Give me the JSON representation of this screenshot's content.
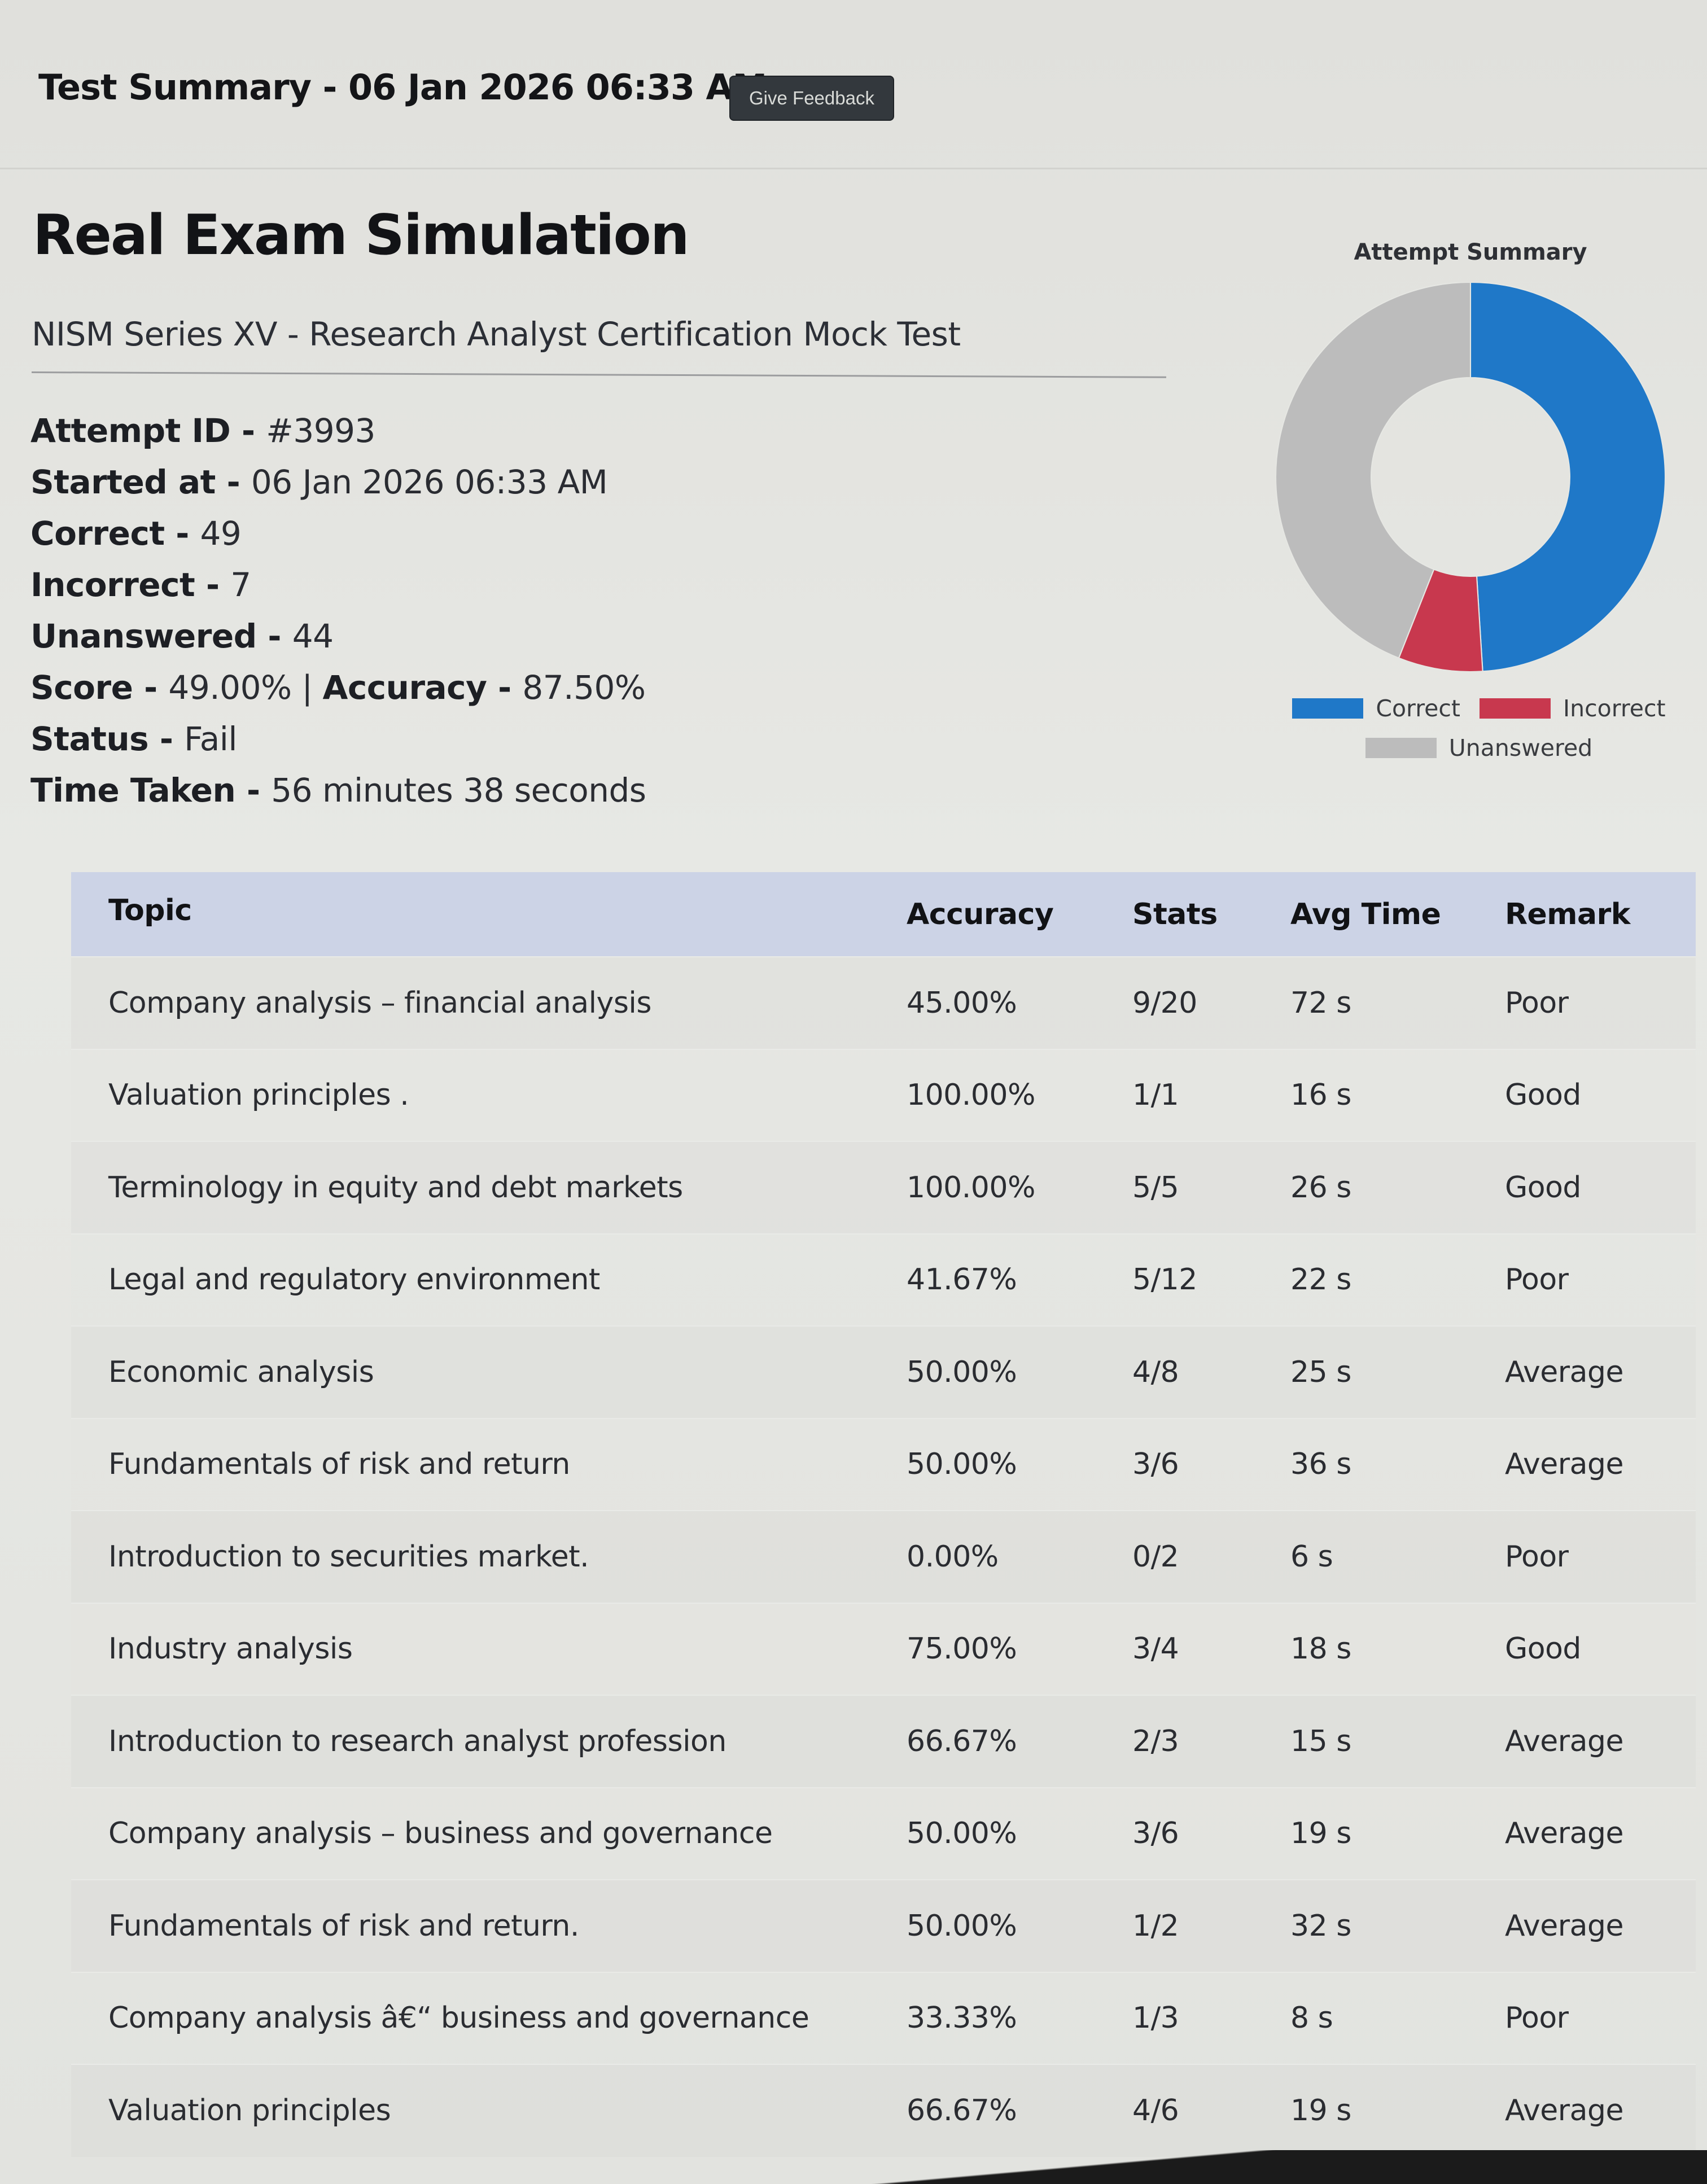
{
  "header": {
    "summary_title": "Test Summary - 06 Jan 2026 06:33 AM",
    "feedback_button": "Give Feedback"
  },
  "exam": {
    "title": "Real Exam Simulation",
    "subtitle": "NISM Series XV - Research Analyst Certification Mock Test"
  },
  "details": {
    "attempt_id": {
      "label": "Attempt ID",
      "value": "#3993"
    },
    "started_at": {
      "label": "Started at",
      "value": "06 Jan 2026 06:33 AM"
    },
    "correct": {
      "label": "Correct",
      "value": "49"
    },
    "incorrect": {
      "label": "Incorrect",
      "value": "7"
    },
    "unanswered": {
      "label": "Unanswered",
      "value": "44"
    },
    "score": {
      "label": "Score",
      "value": "49.00%"
    },
    "accuracy": {
      "label": "Accuracy",
      "value": "87.50%"
    },
    "status": {
      "label": "Status",
      "value": "Fail"
    },
    "time_taken": {
      "label": "Time Taken",
      "value": "56 minutes 38 seconds"
    },
    "separator": " - ",
    "pipe": " | "
  },
  "chart_data": {
    "type": "pie",
    "variant": "donut",
    "title": "Attempt Summary",
    "categories": [
      "Correct",
      "Incorrect",
      "Unanswered"
    ],
    "values": [
      49,
      7,
      44
    ],
    "colors": [
      "#1f78c8",
      "#c8384e",
      "#bcbcbc"
    ],
    "legend_position": "bottom"
  },
  "table": {
    "columns": [
      "Topic",
      "Accuracy",
      "Stats",
      "Avg Time",
      "Remark"
    ],
    "rows": [
      {
        "topic": "Company analysis – financial analysis",
        "accuracy": "45.00%",
        "stats": "9/20",
        "avg_time": "72 s",
        "remark": "Poor"
      },
      {
        "topic": "Valuation principles .",
        "accuracy": "100.00%",
        "stats": "1/1",
        "avg_time": "16 s",
        "remark": "Good"
      },
      {
        "topic": "Terminology in equity and debt markets",
        "accuracy": "100.00%",
        "stats": "5/5",
        "avg_time": "26 s",
        "remark": "Good"
      },
      {
        "topic": "Legal and regulatory environment",
        "accuracy": "41.67%",
        "stats": "5/12",
        "avg_time": "22 s",
        "remark": "Poor"
      },
      {
        "topic": "Economic analysis",
        "accuracy": "50.00%",
        "stats": "4/8",
        "avg_time": "25 s",
        "remark": "Average"
      },
      {
        "topic": "Fundamentals of risk and return",
        "accuracy": "50.00%",
        "stats": "3/6",
        "avg_time": "36 s",
        "remark": "Average"
      },
      {
        "topic": "Introduction to securities market.",
        "accuracy": "0.00%",
        "stats": "0/2",
        "avg_time": "6 s",
        "remark": "Poor"
      },
      {
        "topic": "Industry analysis",
        "accuracy": "75.00%",
        "stats": "3/4",
        "avg_time": "18 s",
        "remark": "Good"
      },
      {
        "topic": "Introduction to research analyst profession",
        "accuracy": "66.67%",
        "stats": "2/3",
        "avg_time": "15 s",
        "remark": "Average"
      },
      {
        "topic": "Company analysis – business and governance",
        "accuracy": "50.00%",
        "stats": "3/6",
        "avg_time": "19 s",
        "remark": "Average"
      },
      {
        "topic": "Fundamentals of risk and return.",
        "accuracy": "50.00%",
        "stats": "1/2",
        "avg_time": "32 s",
        "remark": "Average"
      },
      {
        "topic": "Company analysis â€“ business and governance",
        "accuracy": "33.33%",
        "stats": "1/3",
        "avg_time": "8 s",
        "remark": "Poor"
      },
      {
        "topic": "Valuation principles",
        "accuracy": "66.67%",
        "stats": "4/6",
        "avg_time": "19 s",
        "remark": "Average"
      }
    ]
  }
}
